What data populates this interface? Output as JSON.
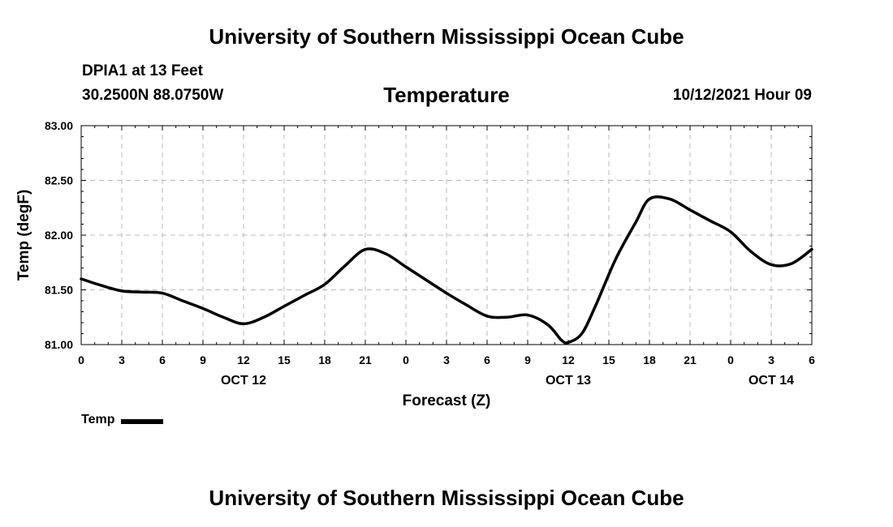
{
  "header": {
    "title_top": "University of Southern Mississippi Ocean Cube",
    "station": "DPIA1 at 13 Feet",
    "coords": "30.2500N  88.0750W",
    "chart_title": "Temperature",
    "timestamp": "10/12/2021 Hour 09"
  },
  "footer": {
    "title_bottom": "University of Southern Mississippi Ocean Cube"
  },
  "legend": {
    "label": "Temp",
    "color": "#000000"
  },
  "chart_data": {
    "type": "line",
    "title": "Temperature",
    "xlabel": "Forecast (Z)",
    "ylabel": "Temp (degF)",
    "ylim": [
      81.0,
      83.0
    ],
    "xlim": [
      0,
      54
    ],
    "x_unit": "hours since 2021-10-12 00Z",
    "y_ticks": [
      "81.00",
      "81.50",
      "82.00",
      "82.50",
      "83.00"
    ],
    "x_ticks": [
      {
        "x": 0,
        "label": "0"
      },
      {
        "x": 3,
        "label": "3"
      },
      {
        "x": 6,
        "label": "6"
      },
      {
        "x": 9,
        "label": "9"
      },
      {
        "x": 12,
        "label": "12"
      },
      {
        "x": 15,
        "label": "15"
      },
      {
        "x": 18,
        "label": "18"
      },
      {
        "x": 21,
        "label": "21"
      },
      {
        "x": 24,
        "label": "0"
      },
      {
        "x": 27,
        "label": "3"
      },
      {
        "x": 30,
        "label": "6"
      },
      {
        "x": 33,
        "label": "9"
      },
      {
        "x": 36,
        "label": "12"
      },
      {
        "x": 39,
        "label": "15"
      },
      {
        "x": 42,
        "label": "18"
      },
      {
        "x": 45,
        "label": "21"
      },
      {
        "x": 48,
        "label": "0"
      },
      {
        "x": 51,
        "label": "3"
      },
      {
        "x": 54,
        "label": "6"
      }
    ],
    "date_labels": [
      {
        "x": 12,
        "label": "OCT 12"
      },
      {
        "x": 36,
        "label": "OCT 13"
      },
      {
        "x": 51,
        "label": "OCT 14"
      }
    ],
    "grid": true,
    "series": [
      {
        "name": "Temp",
        "color": "#000000",
        "x": [
          0,
          1.5,
          3,
          4.5,
          6,
          7.5,
          9,
          10.5,
          12,
          13.5,
          15,
          16.5,
          18,
          19.5,
          21,
          22.5,
          24,
          25.5,
          27,
          28.5,
          30,
          31.5,
          33,
          34.5,
          35.5,
          36,
          37,
          38,
          39.5,
          41,
          42,
          43.5,
          45,
          46.5,
          48,
          49.5,
          51,
          52.5,
          54
        ],
        "y": [
          81.6,
          81.54,
          81.49,
          81.48,
          81.47,
          81.4,
          81.33,
          81.25,
          81.19,
          81.25,
          81.35,
          81.45,
          81.55,
          81.72,
          81.87,
          81.83,
          81.71,
          81.59,
          81.47,
          81.36,
          81.26,
          81.25,
          81.27,
          81.18,
          81.04,
          81.02,
          81.1,
          81.35,
          81.78,
          82.12,
          82.33,
          82.33,
          82.23,
          82.13,
          82.03,
          81.85,
          81.73,
          81.74,
          81.87
        ]
      }
    ]
  }
}
